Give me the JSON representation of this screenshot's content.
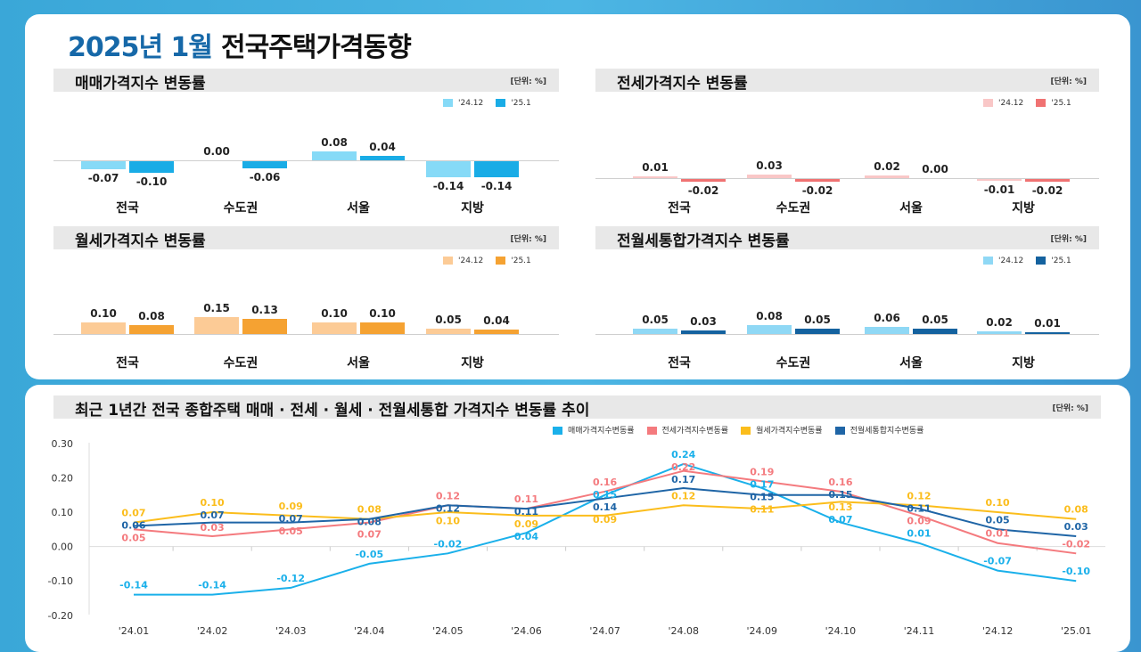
{
  "title": {
    "year_month": "2025년 1월",
    "main": "전국주택가격동향"
  },
  "unit": "[단위: %]",
  "bar_legend": [
    "'24.12",
    "'25.1"
  ],
  "chart_data": [
    {
      "type": "bar",
      "title": "매매가격지수 변동률",
      "categories": [
        "전국",
        "수도권",
        "서울",
        "지방"
      ],
      "series": [
        {
          "name": "'24.12",
          "values": [
            -0.07,
            0.0,
            0.08,
            -0.14
          ],
          "color": "#86daf7"
        },
        {
          "name": "'25.1",
          "values": [
            -0.1,
            -0.06,
            0.04,
            -0.14
          ],
          "color": "#19ace6"
        }
      ]
    },
    {
      "type": "bar",
      "title": "전세가격지수 변동률",
      "categories": [
        "전국",
        "수도권",
        "서울",
        "지방"
      ],
      "series": [
        {
          "name": "'24.12",
          "values": [
            0.01,
            0.03,
            0.02,
            -0.01
          ],
          "color": "#f9c7c7"
        },
        {
          "name": "'25.1",
          "values": [
            -0.02,
            -0.02,
            0.0,
            -0.02
          ],
          "color": "#f07272"
        }
      ]
    },
    {
      "type": "bar",
      "title": "월세가격지수 변동률",
      "categories": [
        "전국",
        "수도권",
        "서울",
        "지방"
      ],
      "series": [
        {
          "name": "'24.12",
          "values": [
            0.1,
            0.15,
            0.1,
            0.05
          ],
          "color": "#fccb96"
        },
        {
          "name": "'25.1",
          "values": [
            0.08,
            0.13,
            0.1,
            0.04
          ],
          "color": "#f5a232"
        }
      ]
    },
    {
      "type": "bar",
      "title": "전월세통합가격지수 변동률",
      "categories": [
        "전국",
        "수도권",
        "서울",
        "지방"
      ],
      "series": [
        {
          "name": "'24.12",
          "values": [
            0.05,
            0.08,
            0.06,
            0.02
          ],
          "color": "#8fd8f5"
        },
        {
          "name": "'25.1",
          "values": [
            0.03,
            0.05,
            0.05,
            0.01
          ],
          "color": "#14629f"
        }
      ]
    },
    {
      "type": "line",
      "title": "최근 1년간 전국 종합주택 매매 · 전세 · 월세 · 전월세통합 가격지수 변동률 추이",
      "x": [
        "'24.01",
        "'24.02",
        "'24.03",
        "'24.04",
        "'24.05",
        "'24.06",
        "'24.07",
        "'24.08",
        "'24.09",
        "'24.10",
        "'24.11",
        "'24.12",
        "'25.01"
      ],
      "ylim": [
        -0.2,
        0.3
      ],
      "yticks": [
        "0.30",
        "0.20",
        "0.10",
        "0.00",
        "-0.10",
        "-0.20"
      ],
      "legend_position": "top-right",
      "series": [
        {
          "name": "매매가격지수변동률",
          "color": "#1ab0ea",
          "values": [
            -0.14,
            -0.14,
            -0.12,
            -0.05,
            -0.02,
            0.04,
            0.15,
            0.24,
            0.17,
            0.07,
            0.01,
            -0.07,
            -0.1
          ]
        },
        {
          "name": "전세가격지수변동률",
          "color": "#f47a7e",
          "values": [
            0.05,
            0.03,
            0.05,
            0.07,
            0.12,
            0.11,
            0.16,
            0.22,
            0.19,
            0.16,
            0.09,
            0.01,
            -0.02
          ]
        },
        {
          "name": "월세가격지수변동률",
          "color": "#fbbd1c",
          "values": [
            0.07,
            0.1,
            0.09,
            0.08,
            0.1,
            0.09,
            0.09,
            0.12,
            0.11,
            0.13,
            0.12,
            0.1,
            0.08
          ]
        },
        {
          "name": "전월세통합지수변동률",
          "color": "#1f65a6",
          "values": [
            0.06,
            0.07,
            0.07,
            0.08,
            0.12,
            0.11,
            0.14,
            0.17,
            0.15,
            0.15,
            0.11,
            0.05,
            0.03
          ]
        }
      ]
    }
  ]
}
